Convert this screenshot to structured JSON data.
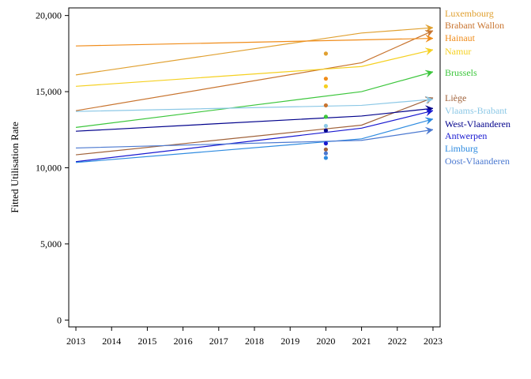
{
  "chart_data": {
    "type": "line",
    "title": "",
    "xlabel": "",
    "ylabel": "Fitted Utilisation Rate",
    "x": [
      2013,
      2014,
      2015,
      2016,
      2017,
      2018,
      2019,
      2020,
      2021,
      2022,
      2023
    ],
    "x_ticks": [
      "2013",
      "2014",
      "2015",
      "2016",
      "2017",
      "2018",
      "2019",
      "2020",
      "2021",
      "2022",
      "2023"
    ],
    "y_ticks": [
      "0",
      "5,000",
      "10,000",
      "15,000",
      "20,000"
    ],
    "y_tick_values": [
      0,
      5000,
      10000,
      15000,
      20000
    ],
    "xlim": [
      2012.8,
      2023.2
    ],
    "ylim": [
      -450,
      20500
    ],
    "grid": false,
    "legend": "right, labels at line ends",
    "series": [
      {
        "name": "Luxembourg",
        "color": "#E0A030",
        "line": [
          [
            2013,
            16100
          ],
          [
            2021,
            18850
          ],
          [
            2023,
            19200
          ]
        ],
        "point_2020": 17500
      },
      {
        "name": "Brabant Wallon",
        "color": "#C8742F",
        "line": [
          [
            2013,
            13750
          ],
          [
            2021,
            16900
          ],
          [
            2023,
            19000
          ]
        ],
        "point_2020": 14100
      },
      {
        "name": "Hainaut",
        "color": "#F08C1A",
        "line": [
          [
            2013,
            18000
          ],
          [
            2023,
            18500
          ]
        ],
        "point_2020": 15850
      },
      {
        "name": "Namur",
        "color": "#F5D020",
        "line": [
          [
            2013,
            15350
          ],
          [
            2021,
            16650
          ],
          [
            2023,
            17750
          ]
        ],
        "point_2020": 15350
      },
      {
        "name": "Brussels",
        "color": "#3CC63C",
        "line": [
          [
            2013,
            12650
          ],
          [
            2021,
            15000
          ],
          [
            2023,
            16300
          ]
        ],
        "point_2020": 13350
      },
      {
        "name": "Liège",
        "color": "#A0623A",
        "line": [
          [
            2013,
            10850
          ],
          [
            2021,
            12800
          ],
          [
            2023,
            14600
          ]
        ],
        "point_2020": 11200
      },
      {
        "name": "Vlaams-Brabant",
        "color": "#8CC8E6",
        "line": [
          [
            2013,
            13700
          ],
          [
            2021,
            14100
          ],
          [
            2023,
            14500
          ]
        ],
        "point_2020": 12750
      },
      {
        "name": "West-Vlaanderen",
        "color": "#00008B",
        "line": [
          [
            2013,
            12400
          ],
          [
            2021,
            13400
          ],
          [
            2023,
            13900
          ]
        ],
        "point_2020": 12450
      },
      {
        "name": "Antwerpen",
        "color": "#1818D0",
        "line": [
          [
            2013,
            10400
          ],
          [
            2021,
            12600
          ],
          [
            2023,
            13750
          ]
        ],
        "point_2020": 11600
      },
      {
        "name": "Limburg",
        "color": "#2E8BE0",
        "line": [
          [
            2013,
            10350
          ],
          [
            2021,
            11900
          ],
          [
            2023,
            13200
          ]
        ],
        "point_2020": 10650
      },
      {
        "name": "Oost-Vlaanderen",
        "color": "#4A78D0",
        "line": [
          [
            2013,
            11300
          ],
          [
            2021,
            11800
          ],
          [
            2023,
            12500
          ]
        ],
        "point_2020": 10950
      }
    ]
  }
}
